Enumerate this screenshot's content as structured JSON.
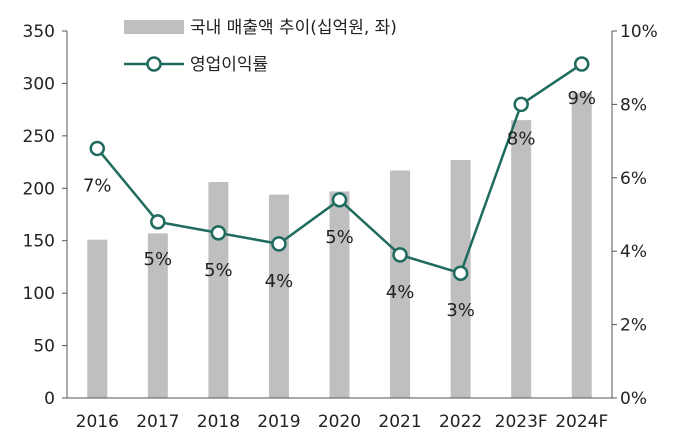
{
  "chart_data": {
    "type": "bar+line",
    "categories": [
      "2016",
      "2017",
      "2018",
      "2019",
      "2020",
      "2021",
      "2022",
      "2023F",
      "2024F"
    ],
    "series": [
      {
        "name": "국내 매출액 추이(십억원, 좌)",
        "type": "bar",
        "axis": "left",
        "values": [
          151,
          157,
          206,
          194,
          197,
          217,
          227,
          265,
          291
        ],
        "color": "#bfbfbf"
      },
      {
        "name": "영업이익률",
        "type": "line",
        "axis": "right",
        "values": [
          6.8,
          4.8,
          4.5,
          4.2,
          5.4,
          3.9,
          3.4,
          8.0,
          9.1
        ],
        "data_labels": [
          "7%",
          "5%",
          "5%",
          "4%",
          "5%",
          "4%",
          "3%",
          "8%",
          "9%"
        ],
        "color": "#1f6b5e"
      }
    ],
    "y_left": {
      "lim": [
        0,
        350
      ],
      "ticks": [
        "0",
        "50",
        "100",
        "150",
        "200",
        "250",
        "300",
        "350"
      ]
    },
    "y_right": {
      "lim": [
        0,
        10
      ],
      "ticks": [
        "0%",
        "2%",
        "4%",
        "6%",
        "8%",
        "10%"
      ]
    },
    "legend_position": "top-center",
    "grid": false
  }
}
